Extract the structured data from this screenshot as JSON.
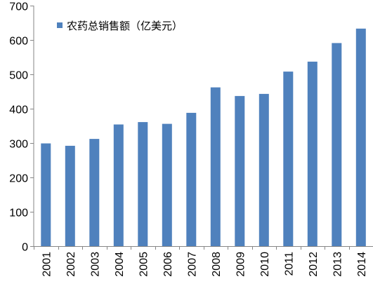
{
  "chart_data": {
    "type": "bar",
    "title": "",
    "xlabel": "",
    "ylabel": "",
    "categories": [
      "2001",
      "2002",
      "2003",
      "2004",
      "2005",
      "2006",
      "2007",
      "2008",
      "2009",
      "2010",
      "2011",
      "2012",
      "2013",
      "2014"
    ],
    "series": [
      {
        "name": "农药总销售额（亿美元）",
        "values": [
          299,
          292,
          312,
          354,
          361,
          356,
          388,
          462,
          437,
          443,
          508,
          537,
          591,
          633
        ],
        "color": "#4F81BD"
      }
    ],
    "ylim": [
      0,
      700
    ],
    "yticks": [
      0,
      100,
      200,
      300,
      400,
      500,
      600,
      700
    ],
    "grid": false,
    "legend": "top-left"
  }
}
